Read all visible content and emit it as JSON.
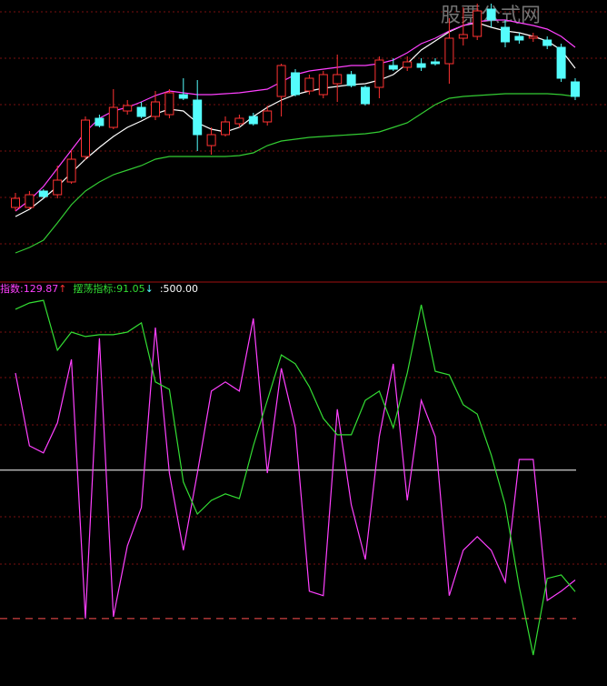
{
  "chart_data": [
    {
      "type": "candlestick",
      "ylim": [
        0,
        310
      ],
      "up_color": "#ff3232",
      "down_color": "#54fcfc",
      "watermark": "股票公式网",
      "open": [
        82,
        82,
        100,
        96,
        110,
        138,
        180,
        170,
        188,
        192,
        182,
        184,
        206,
        200,
        150,
        162,
        174,
        182,
        176,
        204,
        230,
        210,
        206,
        218,
        228,
        214,
        214,
        238,
        236,
        240,
        242,
        240,
        268,
        270,
        300,
        280,
        270,
        268,
        266,
        258,
        220
      ],
      "close": [
        92,
        96,
        94,
        112,
        135,
        178,
        172,
        192,
        194,
        182,
        198,
        208,
        202,
        162,
        162,
        176,
        180,
        174,
        188,
        238,
        206,
        224,
        228,
        228,
        216,
        196,
        244,
        234,
        242,
        236,
        240,
        268,
        272,
        298,
        288,
        264,
        266,
        270,
        260,
        224,
        204
      ],
      "high": [
        98,
        100,
        102,
        128,
        145,
        182,
        184,
        212,
        200,
        198,
        210,
        212,
        224,
        222,
        170,
        182,
        184,
        186,
        194,
        240,
        234,
        228,
        232,
        250,
        232,
        216,
        248,
        246,
        248,
        246,
        246,
        290,
        302,
        306,
        306,
        288,
        274,
        274,
        270,
        262,
        224
      ],
      "low": [
        78,
        80,
        92,
        92,
        108,
        134,
        170,
        168,
        184,
        180,
        178,
        180,
        200,
        144,
        140,
        160,
        170,
        172,
        172,
        182,
        204,
        206,
        202,
        198,
        214,
        194,
        202,
        232,
        232,
        232,
        238,
        218,
        260,
        266,
        280,
        258,
        262,
        264,
        256,
        220,
        200
      ],
      "series": [
        {
          "color": "#ffffff",
          "values": [
            72,
            80,
            92,
            105,
            120,
            135,
            148,
            160,
            170,
            177,
            185,
            190,
            188,
            175,
            168,
            165,
            170,
            182,
            192,
            200,
            206,
            210,
            213,
            215,
            217,
            218,
            222,
            228,
            240,
            255,
            265,
            275,
            282,
            285,
            280,
            276,
            274,
            270,
            265,
            255,
            235
          ]
        },
        {
          "color": "#ff40ff",
          "values": [
            78,
            90,
            105,
            125,
            145,
            165,
            180,
            188,
            192,
            198,
            205,
            210,
            208,
            206,
            206,
            207,
            208,
            210,
            212,
            220,
            228,
            232,
            234,
            236,
            238,
            238,
            240,
            244,
            252,
            262,
            268,
            276,
            282,
            286,
            288,
            288,
            285,
            282,
            278,
            270,
            258
          ]
        },
        {
          "color": "#33cc33",
          "values": [
            32,
            38,
            46,
            65,
            85,
            100,
            110,
            118,
            123,
            128,
            135,
            138,
            138,
            138,
            138,
            138,
            139,
            142,
            150,
            155,
            157,
            159,
            160,
            161,
            162,
            163,
            165,
            170,
            175,
            185,
            195,
            202,
            204,
            205,
            206,
            207,
            207,
            207,
            207,
            206,
            204
          ]
        }
      ]
    },
    {
      "type": "line",
      "ylim": [
        -227.2,
        1102.9
      ],
      "series": [
        {
          "label": "指数:129.87",
          "arrow": "↑",
          "arrow_color": "#ff3232",
          "color": "#ff40ff",
          "values": [
            827,
            582,
            558,
            659,
            873,
            0,
            944,
            6,
            245,
            374,
            980,
            490,
            230,
            490,
            766,
            797,
            766,
            1011,
            490,
            843,
            643,
            92,
            77,
            705,
            383,
            199,
            613,
            858,
            398,
            735,
            613,
            77,
            230,
            276,
            230,
            123,
            536,
            536,
            61,
            92,
            129.87
          ]
        },
        {
          "label": "摆荡指标:91.05",
          "arrow": "↓",
          "arrow_color": "#54fcfc",
          "color": "#33dd33",
          "values": [
            1042,
            1063,
            1072,
            904,
            965,
            950,
            956,
            956,
            965,
            996,
            797,
            772,
            460,
            352,
            398,
            420,
            404,
            582,
            735,
            888,
            858,
            781,
            674,
            619,
            619,
            735,
            766,
            643,
            827,
            1057,
            833,
            821,
            720,
            689,
            551,
            383,
            107,
            -123,
            135,
            147,
            91.05
          ]
        }
      ],
      "ref_lines": [
        {
          "value": 500,
          "label": ":500.00",
          "color": "#ffffff"
        },
        {
          "value": 0,
          "color": "#ff5050"
        }
      ]
    }
  ]
}
